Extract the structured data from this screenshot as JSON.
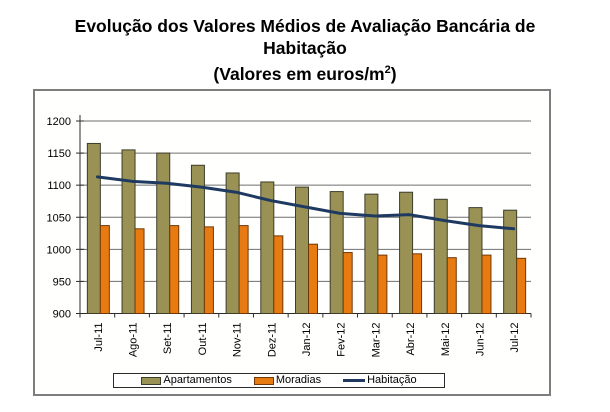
{
  "title": {
    "line1": "Evolução dos Valores Médios de Avaliação Bancária de",
    "line2": "Habitação",
    "line3_prefix": "(Valores em euros/m",
    "line3_sup": "2",
    "line3_suffix": ")"
  },
  "colors": {
    "apartamentos_fill": "#9A9254",
    "apartamentos_border": "#3D3D2A",
    "moradias_fill": "#E87A12",
    "moradias_border": "#703808",
    "habitacao_line": "#1F3A60",
    "gridline": "#6F6F6F",
    "axis": "#2B2B2B",
    "frame_border": "#7E7E7E",
    "background": "#FFFFFF"
  },
  "chart_data": {
    "type": "bar+line",
    "title": "Evolução dos Valores Médios de Avaliação Bancária de Habitação (Valores em euros/m²)",
    "categories": [
      "Jul-11",
      "Ago-11",
      "Set-11",
      "Out-11",
      "Nov-11",
      "Dez-11",
      "Jan-12",
      "Fev-12",
      "Mar-12",
      "Abr-12",
      "Mai-12",
      "Jun-12",
      "Jul-12"
    ],
    "series": [
      {
        "name": "Apartamentos",
        "type": "bar",
        "color": "#9A9254",
        "border": "#3D3D2A",
        "values": [
          1165,
          1155,
          1150,
          1131,
          1119,
          1105,
          1097,
          1090,
          1086,
          1089,
          1078,
          1065,
          1061
        ]
      },
      {
        "name": "Moradias",
        "type": "bar",
        "color": "#E87A12",
        "border": "#703808",
        "values": [
          1037,
          1032,
          1037,
          1035,
          1037,
          1021,
          1008,
          995,
          991,
          993,
          987,
          991,
          986
        ]
      },
      {
        "name": "Habitação",
        "type": "line",
        "color": "#1F3A60",
        "values": [
          1113,
          1106,
          1103,
          1097,
          1089,
          1076,
          1066,
          1056,
          1052,
          1054,
          1045,
          1037,
          1032
        ]
      }
    ],
    "xlabel": "",
    "ylabel": "",
    "ylim": [
      900,
      1200
    ],
    "yticks": [
      900,
      950,
      1000,
      1050,
      1100,
      1150,
      1200
    ],
    "grid": true,
    "legend_position": "bottom"
  }
}
